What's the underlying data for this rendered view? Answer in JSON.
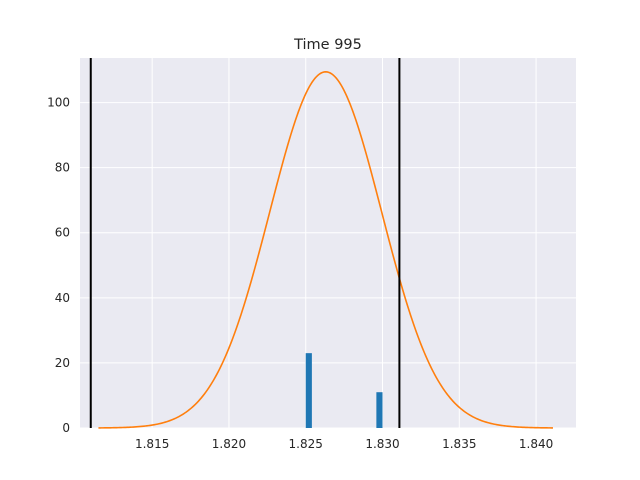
{
  "chart_data": {
    "type": "bar",
    "title": "Time 995",
    "xlabel": "",
    "ylabel": "",
    "xlim": [
      1.8103,
      1.8426
    ],
    "ylim": [
      0,
      113.7
    ],
    "grid": true,
    "legend": null,
    "x_ticks": [
      "1.815",
      "1.820",
      "1.825",
      "1.830",
      "1.835",
      "1.840"
    ],
    "x_tick_values": [
      1.815,
      1.82,
      1.825,
      1.83,
      1.835,
      1.84
    ],
    "y_ticks": [
      "0",
      "20",
      "40",
      "60",
      "80",
      "100"
    ],
    "y_tick_values": [
      0,
      20,
      40,
      60,
      80,
      100
    ],
    "bars": [
      {
        "x": 1.8252,
        "width": 0.0004,
        "value": 23
      },
      {
        "x": 1.8298,
        "width": 0.0004,
        "value": 11
      }
    ],
    "vertical_lines": [
      1.811,
      1.8311
    ],
    "curve": {
      "type": "normal-pdf",
      "mean": 1.8263,
      "std": 0.003645,
      "x_range": [
        1.8115,
        1.8411
      ]
    },
    "colors": {
      "background": "#eaeaf2",
      "grid": "#ffffff",
      "bar": "#1f77b4",
      "curve": "#ff7f0e",
      "vline": "#000000",
      "text": "#262626"
    }
  }
}
